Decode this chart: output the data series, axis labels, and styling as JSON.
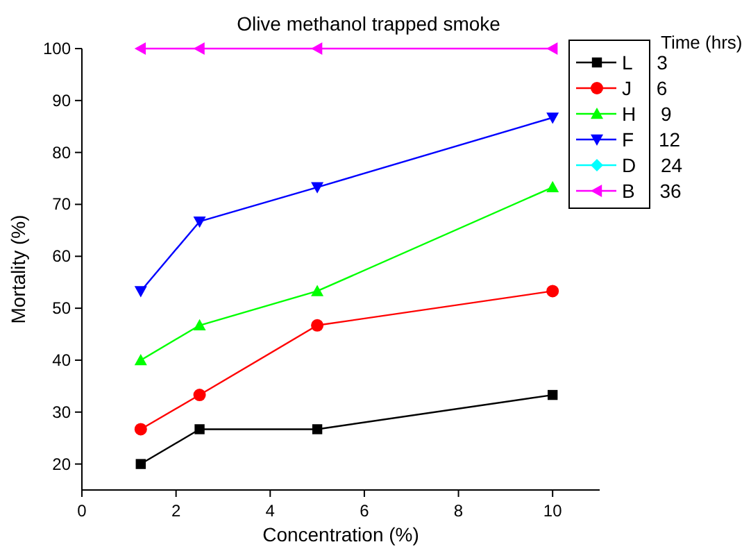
{
  "chart_data": {
    "type": "line",
    "title": "Olive methanol trapped smoke",
    "xlabel": "Concentration (%)",
    "ylabel": "Mortality (%)",
    "legend_title": "Time (hrs)",
    "legend": "top right",
    "x": [
      1.25,
      2.5,
      5,
      10
    ],
    "xlim": [
      0,
      11
    ],
    "xticks": [
      0,
      2,
      4,
      6,
      8,
      10
    ],
    "ylim": [
      15,
      100
    ],
    "yticks": [
      20,
      30,
      40,
      50,
      60,
      70,
      80,
      90,
      100
    ],
    "grid": false,
    "series": [
      {
        "name": "L 3",
        "color": "#000000",
        "marker": "square",
        "values": [
          20,
          26.7,
          26.7,
          33.3
        ]
      },
      {
        "name": "J 6",
        "color": "#ff0000",
        "marker": "circle",
        "values": [
          26.7,
          33.3,
          46.7,
          53.3
        ]
      },
      {
        "name": "H 9",
        "color": "#00ff00",
        "marker": "triangle",
        "values": [
          40,
          46.7,
          53.3,
          73.3
        ]
      },
      {
        "name": "F 12",
        "color": "#0000ff",
        "marker": "triangle-down",
        "values": [
          53.3,
          66.7,
          73.3,
          86.7
        ]
      },
      {
        "name": "D 24",
        "color": "#00ffff",
        "marker": "diamond",
        "values": [
          null,
          null,
          null,
          null
        ]
      },
      {
        "name": "B 36",
        "color": "#ff00ff",
        "marker": "triangle-left",
        "values": [
          100,
          100,
          100,
          100
        ]
      }
    ]
  }
}
